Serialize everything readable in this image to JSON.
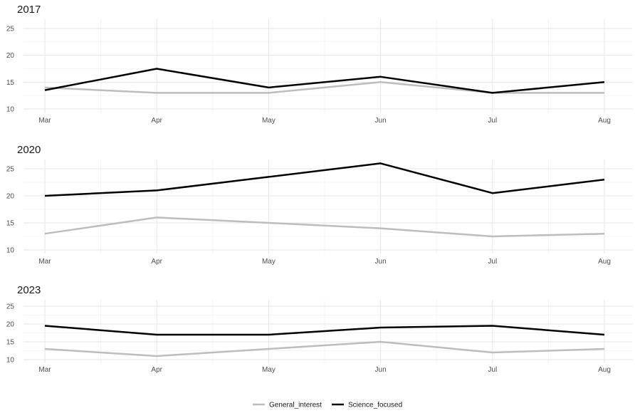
{
  "chart_data": {
    "type": "line",
    "x": [
      "Mar",
      "Apr",
      "May",
      "Jun",
      "Jul",
      "Aug"
    ],
    "ylim": [
      10,
      26
    ],
    "yticks": [
      10,
      15,
      20,
      25
    ],
    "grid": true,
    "legend_position": "bottom",
    "series_styles": [
      {
        "name": "General_interest",
        "color": "#bdbdbd"
      },
      {
        "name": "Science_focused",
        "color": "#000000"
      }
    ],
    "panels": [
      {
        "title": "2017",
        "series": [
          {
            "name": "General_interest",
            "values": [
              14,
              13,
              13,
              15,
              13,
              13
            ]
          },
          {
            "name": "Science_focused",
            "values": [
              13.5,
              17.5,
              14,
              16,
              13,
              15
            ]
          }
        ]
      },
      {
        "title": "2020",
        "series": [
          {
            "name": "General_interest",
            "values": [
              13,
              16,
              15,
              14,
              12.5,
              13
            ]
          },
          {
            "name": "Science_focused",
            "values": [
              20,
              21,
              23.5,
              26,
              20.5,
              23
            ]
          }
        ]
      },
      {
        "title": "2023",
        "series": [
          {
            "name": "General_interest",
            "values": [
              13,
              11,
              13,
              15,
              12,
              13
            ]
          },
          {
            "name": "Science_focused",
            "values": [
              19.5,
              17,
              17,
              19,
              19.5,
              17
            ]
          }
        ]
      }
    ]
  }
}
